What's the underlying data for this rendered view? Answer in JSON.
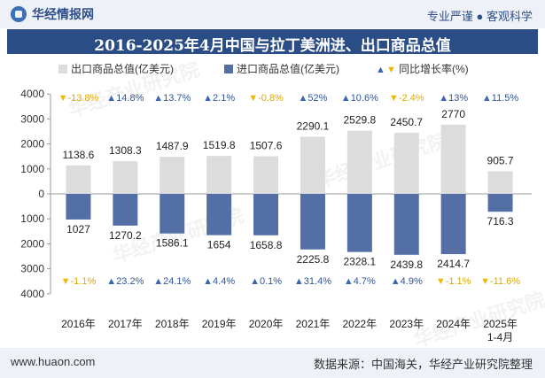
{
  "header": {
    "logo_text": "华经情报网",
    "slogan": "专业严谨 ● 客观科学"
  },
  "title": "2016-2025年4月中国与拉丁美洲进、出口商品总值",
  "legend": {
    "export_label": "出口商品总值(亿美元)",
    "import_label": "进口商品总值(亿美元)",
    "growth_label": "同比增长率(%)"
  },
  "footer": {
    "website": "www.huaon.com",
    "source": "数据来源：中国海关，华经产业研究院整理"
  },
  "watermark": "华经产业研究院",
  "colors": {
    "export": "#dcdcdc",
    "import": "#536fa6",
    "up": "#3a68b0",
    "down": "#f2b705",
    "title_bg": "#2a4d86"
  },
  "chart_data": {
    "type": "bar",
    "categories": [
      "2016年",
      "2017年",
      "2018年",
      "2019年",
      "2020年",
      "2021年",
      "2022年",
      "2023年",
      "2024年",
      "2025年\n1-4月"
    ],
    "series": [
      {
        "name": "出口商品总值(亿美元)",
        "values": [
          1138.6,
          1308.3,
          1487.9,
          1519.8,
          1507.6,
          2290.1,
          2529.8,
          2450.7,
          2770,
          905.7
        ]
      },
      {
        "name": "进口商品总值(亿美元)",
        "values": [
          1027,
          1270.2,
          1586.1,
          1654,
          1658.8,
          2225.8,
          2328.1,
          2439.8,
          2414.7,
          716.3
        ]
      }
    ],
    "export_labels": [
      "1138.6",
      "1308.3",
      "1487.9",
      "1519.8",
      "1507.6",
      "2290.1",
      "2529.8",
      "2450.7",
      "2770",
      "905.7"
    ],
    "import_labels": [
      "1027",
      "1270.2",
      "1586.1",
      "1654",
      "1658.8",
      "2225.8",
      "2328.1",
      "2439.8",
      "2414.7",
      "716.3"
    ],
    "export_growth": [
      -13.8,
      14.8,
      13.7,
      2.1,
      -0.8,
      52,
      10.6,
      -2.4,
      13,
      11.5
    ],
    "export_growth_labels": [
      "-13.8%",
      "14.8%",
      "13.7%",
      "2.1%",
      "-0.8%",
      "52%",
      "10.6%",
      "-2.4%",
      "13%",
      "11.5%"
    ],
    "import_growth": [
      -1.1,
      23.2,
      24.1,
      4.4,
      0.1,
      31.4,
      4.7,
      4.9,
      -1.1,
      -11.6
    ],
    "import_growth_labels": [
      "-1.1%",
      "23.2%",
      "24.1%",
      "4.4%",
      "0.1%",
      "31.4%",
      "4.7%",
      "4.9%",
      "-1.1%",
      "-11.6%"
    ],
    "yticks": [
      "4000",
      "3000",
      "2000",
      "1000",
      "0",
      "1000",
      "2000",
      "3000",
      "4000"
    ],
    "ylim": [
      -4000,
      4000
    ]
  }
}
